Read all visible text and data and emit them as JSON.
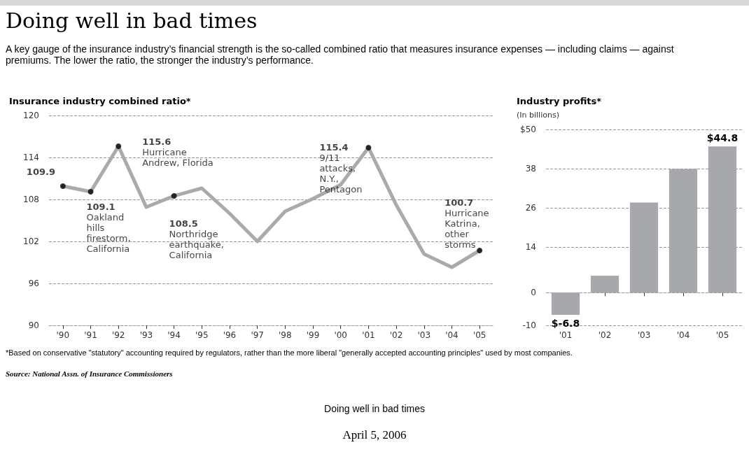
{
  "chart_data": [
    {
      "type": "line",
      "title": "Insurance industry combined ratio*",
      "categories": [
        "'90",
        "'91",
        "'92",
        "'93",
        "'94",
        "'95",
        "'96",
        "'97",
        "'98",
        "'99",
        "'00",
        "'01",
        "'02",
        "'03",
        "'04",
        "'05"
      ],
      "values": [
        109.9,
        109.1,
        115.6,
        106.9,
        108.5,
        109.6,
        106.0,
        102.0,
        106.3,
        108.1,
        110.1,
        115.4,
        107.2,
        100.2,
        98.3,
        100.7
      ],
      "color": "#aaaaab",
      "marker": "none",
      "line_style": "solid",
      "ylim": [
        90,
        120
      ],
      "yticks": [
        90,
        96,
        102,
        108,
        114,
        120
      ],
      "grid": "y",
      "annotations": [
        "Doing well in bad times",
        "A key gauge of the insurance industry’s financial strength is the so-called combined ratio that measures insurance expenses — including claims — against premiums. The lower the ratio, the stronger the industry’s performance.",
        {
          "text": "109.9",
          "x": "'90",
          "y": 109.9
        },
        {
          "text": "109.1\nOakland\nhills\nfirestorm,\nCalifornia",
          "x": "'91",
          "y": 109.1
        },
        {
          "text": "115.6\nHurricane\nAndrew, Florida",
          "x": "'92",
          "y": 115.6
        },
        {
          "text": "108.5\nNorthridge\nearthquake,\nCalifornia",
          "x": "'94",
          "y": 108.5
        },
        {
          "text": "115.4\n9/11\nattacks,\nN.Y.,\nPentagon",
          "x": "'01",
          "y": 115.4
        },
        {
          "text": "100.7\nHurricane\nKatrina,\nother\nstorms",
          "x": "'05",
          "y": 100.7
        },
        "*Based on conservative \"statutory\" accounting required by regulators, rather than the more liberal \"generally accepted accounting principles\" used by most companies.",
        "Source: National Assn. of Insurance Commissioners",
        "Doing well in bad times",
        "April 5, 2006"
      ]
    },
    {
      "type": "bar",
      "title": "Industry profits*",
      "subtitle": "(In billions)",
      "categories": [
        "'01",
        "'02",
        "'03",
        "'04",
        "'05"
      ],
      "values": [
        -6.8,
        5.2,
        27.6,
        37.9,
        44.8
      ],
      "color": "#a7a8ab",
      "value_labels": [
        "$-6.8",
        null,
        null,
        null,
        "$44.8"
      ],
      "ylim": [
        -10,
        50
      ],
      "yticks": [
        -10,
        0,
        14,
        26,
        38,
        {
          "value": 50,
          "label": "$50"
        }
      ],
      "grid": "y"
    }
  ]
}
